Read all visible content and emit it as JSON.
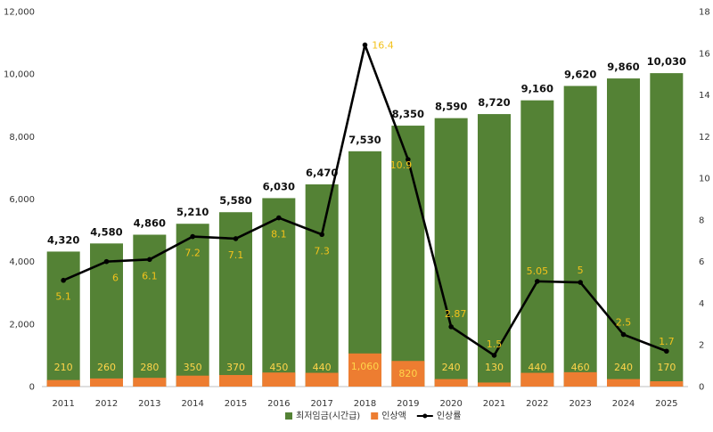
{
  "chart_data": {
    "type": "bar",
    "stacked": true,
    "categories": [
      "2011",
      "2012",
      "2013",
      "2014",
      "2015",
      "2016",
      "2017",
      "2018",
      "2019",
      "2020",
      "2021",
      "2022",
      "2023",
      "2024",
      "2025"
    ],
    "series": [
      {
        "name": "최저임금(시간급)",
        "type": "bar",
        "axis": "left",
        "color": "#548235",
        "values": [
          4320,
          4580,
          4860,
          5210,
          5580,
          6030,
          6470,
          7530,
          8350,
          8590,
          8720,
          9160,
          9620,
          9860,
          10030
        ],
        "labels": [
          "4,320",
          "4,580",
          "4,860",
          "5,210",
          "5,580",
          "6,030",
          "6,470",
          "7,530",
          "8,350",
          "8,590",
          "8,720",
          "9,160",
          "9,620",
          "9,860",
          "10,030"
        ]
      },
      {
        "name": "인상액",
        "type": "bar",
        "axis": "left",
        "color": "#ed7d31",
        "values": [
          210,
          260,
          280,
          350,
          370,
          450,
          440,
          1060,
          820,
          240,
          130,
          440,
          460,
          240,
          170
        ],
        "labels": [
          "210",
          "260",
          "280",
          "350",
          "370",
          "450",
          "440",
          "1,060",
          "820",
          "240",
          "130",
          "440",
          "460",
          "240",
          "170"
        ]
      },
      {
        "name": "인상률",
        "type": "line",
        "axis": "right",
        "color": "#000000",
        "values": [
          5.1,
          6,
          6.1,
          7.2,
          7.1,
          8.1,
          7.3,
          16.4,
          10.9,
          2.87,
          1.5,
          5.05,
          5,
          2.5,
          1.7
        ],
        "labels": [
          "5.1",
          "6",
          "6.1",
          "7.2",
          "7.1",
          "8.1",
          "7.3",
          "16.4",
          "10.9",
          "2.87",
          "1.5",
          "5.05",
          "5",
          "2.5",
          "1.7"
        ]
      }
    ],
    "y_left": {
      "lim": [
        0,
        12000
      ],
      "ticks": [
        0,
        2000,
        4000,
        6000,
        8000,
        10000,
        12000
      ],
      "tick_labels": [
        "0",
        "2,000",
        "4,000",
        "6,000",
        "8,000",
        "10,000",
        "12,000"
      ]
    },
    "y_right": {
      "lim": [
        0,
        18
      ],
      "ticks": [
        0,
        2,
        4,
        6,
        8,
        10,
        12,
        14,
        16,
        18
      ],
      "tick_labels": [
        "0",
        "2",
        "4",
        "6",
        "8",
        "10",
        "12",
        "14",
        "16",
        "18"
      ]
    },
    "grid": false,
    "legend_position": "bottom",
    "legend": [
      {
        "label": "최저임금(시간급)",
        "color": "#548235",
        "kind": "bar"
      },
      {
        "label": "인상액",
        "color": "#ed7d31",
        "kind": "bar"
      },
      {
        "label": "인상률",
        "color": "#000000",
        "kind": "line"
      }
    ]
  }
}
